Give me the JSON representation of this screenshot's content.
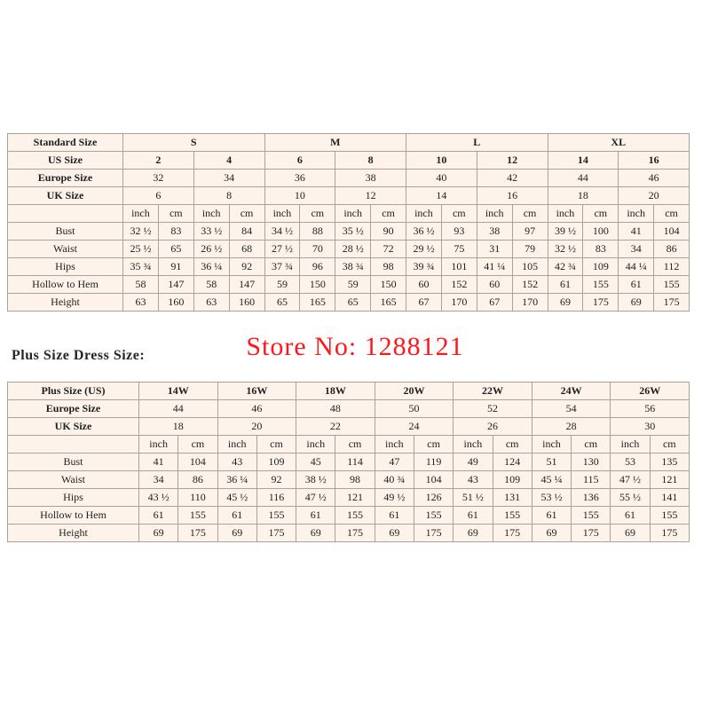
{
  "page": {
    "watermark": "Store No: 1288121",
    "plus_heading": "Plus Size Dress Size:"
  },
  "colors": {
    "table_bg": "#fdf3ea",
    "border_inner": "#aaa296",
    "border_outer": "#6e6e6e",
    "watermark": "#fe0004",
    "heading_text": "#262626",
    "body_text": "#1f1f1f"
  },
  "chart_data": [
    {
      "type": "table",
      "title": "Standard Size",
      "rows": [
        [
          {
            "t": "Standard Size",
            "b": true
          },
          {
            "t": "S",
            "cs": 4,
            "b": true
          },
          {
            "t": "M",
            "cs": 4,
            "b": true
          },
          {
            "t": "L",
            "cs": 4,
            "b": true
          },
          {
            "t": "XL",
            "cs": 4,
            "b": true
          }
        ],
        [
          {
            "t": "US Size",
            "b": true
          },
          {
            "t": "2",
            "cs": 2,
            "b": true
          },
          {
            "t": "4",
            "cs": 2,
            "b": true
          },
          {
            "t": "6",
            "cs": 2,
            "b": true
          },
          {
            "t": "8",
            "cs": 2,
            "b": true
          },
          {
            "t": "10",
            "cs": 2,
            "b": true
          },
          {
            "t": "12",
            "cs": 2,
            "b": true
          },
          {
            "t": "14",
            "cs": 2,
            "b": true
          },
          {
            "t": "16",
            "cs": 2,
            "b": true
          }
        ],
        [
          {
            "t": "Europe Size",
            "b": true
          },
          {
            "t": "32",
            "cs": 2
          },
          {
            "t": "34",
            "cs": 2
          },
          {
            "t": "36",
            "cs": 2
          },
          {
            "t": "38",
            "cs": 2
          },
          {
            "t": "40",
            "cs": 2
          },
          {
            "t": "42",
            "cs": 2
          },
          {
            "t": "44",
            "cs": 2
          },
          {
            "t": "46",
            "cs": 2
          }
        ],
        [
          {
            "t": "UK Size",
            "b": true
          },
          {
            "t": "6",
            "cs": 2
          },
          {
            "t": "8",
            "cs": 2
          },
          {
            "t": "10",
            "cs": 2
          },
          {
            "t": "12",
            "cs": 2
          },
          {
            "t": "14",
            "cs": 2
          },
          {
            "t": "16",
            "cs": 2
          },
          {
            "t": "18",
            "cs": 2
          },
          {
            "t": "20",
            "cs": 2
          }
        ],
        [
          "",
          "inch",
          "cm",
          "inch",
          "cm",
          "inch",
          "cm",
          "inch",
          "cm",
          "inch",
          "cm",
          "inch",
          "cm",
          "inch",
          "cm",
          "inch",
          "cm"
        ],
        [
          "Bust",
          "32 ½",
          "83",
          "33 ½",
          "84",
          "34 ½",
          "88",
          "35 ½",
          "90",
          "36 ½",
          "93",
          "38",
          "97",
          "39 ½",
          "100",
          "41",
          "104"
        ],
        [
          "Waist",
          "25 ½",
          "65",
          "26 ½",
          "68",
          "27 ½",
          "70",
          "28 ½",
          "72",
          "29 ½",
          "75",
          "31",
          "79",
          "32 ½",
          "83",
          "34",
          "86"
        ],
        [
          "Hips",
          "35 ¾",
          "91",
          "36 ¼",
          "92",
          "37 ¾",
          "96",
          "38 ¾",
          "98",
          "39 ¾",
          "101",
          "41 ¼",
          "105",
          "42 ¾",
          "109",
          "44 ¼",
          "112"
        ],
        [
          "Hollow to Hem",
          "58",
          "147",
          "58",
          "147",
          "59",
          "150",
          "59",
          "150",
          "60",
          "152",
          "60",
          "152",
          "61",
          "155",
          "61",
          "155"
        ],
        [
          "Height",
          "63",
          "160",
          "63",
          "160",
          "65",
          "165",
          "65",
          "165",
          "67",
          "170",
          "67",
          "170",
          "69",
          "175",
          "69",
          "175"
        ]
      ]
    },
    {
      "type": "table",
      "title": "Plus Size Dress Size",
      "rows": [
        [
          {
            "t": "Plus Size (US)",
            "b": true
          },
          {
            "t": "14W",
            "cs": 2,
            "b": true
          },
          {
            "t": "16W",
            "cs": 2,
            "b": true
          },
          {
            "t": "18W",
            "cs": 2,
            "b": true
          },
          {
            "t": "20W",
            "cs": 2,
            "b": true
          },
          {
            "t": "22W",
            "cs": 2,
            "b": true
          },
          {
            "t": "24W",
            "cs": 2,
            "b": true
          },
          {
            "t": "26W",
            "cs": 2,
            "b": true
          }
        ],
        [
          {
            "t": "Europe Size",
            "b": true
          },
          {
            "t": "44",
            "cs": 2
          },
          {
            "t": "46",
            "cs": 2
          },
          {
            "t": "48",
            "cs": 2
          },
          {
            "t": "50",
            "cs": 2
          },
          {
            "t": "52",
            "cs": 2
          },
          {
            "t": "54",
            "cs": 2
          },
          {
            "t": "56",
            "cs": 2
          }
        ],
        [
          {
            "t": "UK Size",
            "b": true
          },
          {
            "t": "18",
            "cs": 2
          },
          {
            "t": "20",
            "cs": 2
          },
          {
            "t": "22",
            "cs": 2
          },
          {
            "t": "24",
            "cs": 2
          },
          {
            "t": "26",
            "cs": 2
          },
          {
            "t": "28",
            "cs": 2
          },
          {
            "t": "30",
            "cs": 2
          }
        ],
        [
          "",
          "inch",
          "cm",
          "inch",
          "cm",
          "inch",
          "cm",
          "inch",
          "cm",
          "inch",
          "cm",
          "inch",
          "cm",
          "inch",
          "cm"
        ],
        [
          "Bust",
          "41",
          "104",
          "43",
          "109",
          "45",
          "114",
          "47",
          "119",
          "49",
          "124",
          "51",
          "130",
          "53",
          "135"
        ],
        [
          "Waist",
          "34",
          "86",
          "36 ¼",
          "92",
          "38 ½",
          "98",
          "40 ¾",
          "104",
          "43",
          "109",
          "45 ¼",
          "115",
          "47 ½",
          "121"
        ],
        [
          "Hips",
          "43 ½",
          "110",
          "45 ½",
          "116",
          "47 ½",
          "121",
          "49 ½",
          "126",
          "51 ½",
          "131",
          "53 ½",
          "136",
          "55 ½",
          "141"
        ],
        [
          "Hollow to Hem",
          "61",
          "155",
          "61",
          "155",
          "61",
          "155",
          "61",
          "155",
          "61",
          "155",
          "61",
          "155",
          "61",
          "155"
        ],
        [
          "Height",
          "69",
          "175",
          "69",
          "175",
          "69",
          "175",
          "69",
          "175",
          "69",
          "175",
          "69",
          "175",
          "69",
          "175"
        ]
      ]
    }
  ]
}
